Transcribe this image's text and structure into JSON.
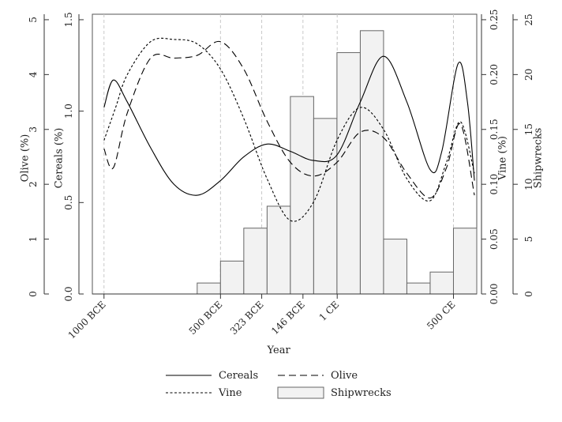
{
  "chart_data": {
    "type": "bar+line",
    "xlabel": "Year",
    "x_ticks": [
      {
        "label": "1000 BCE",
        "x": -1000
      },
      {
        "label": "500 BCE",
        "x": -500
      },
      {
        "label": "323 BCE",
        "x": -323
      },
      {
        "label": "146 BCE",
        "x": -146
      },
      {
        "label": "1 CE",
        "x": 1
      },
      {
        "label": "500 CE",
        "x": 500
      }
    ],
    "xlim": [
      -1050,
      600
    ],
    "axes": [
      {
        "label": "Olive (%)",
        "ticks": [
          "0",
          "1",
          "2",
          "3",
          "4",
          "5"
        ],
        "ylim": [
          0,
          5.1
        ]
      },
      {
        "label": "Cereals (%)",
        "ticks": [
          "0.0",
          "0.5",
          "1.0",
          "1.5"
        ],
        "ylim": [
          0,
          1.53
        ]
      },
      {
        "label": "Vine (%)",
        "ticks": [
          "0.00",
          "0.05",
          "0.10",
          "0.15",
          "0.20",
          "0.25"
        ],
        "ylim": [
          0,
          0.255
        ]
      },
      {
        "label": "Shipwrecks",
        "ticks": [
          "0",
          "5",
          "10",
          "15",
          "20",
          "25"
        ],
        "ylim": [
          0,
          25.5
        ]
      }
    ],
    "bars": {
      "name": "Shipwrecks",
      "width": 100,
      "centers": [
        -550,
        -450,
        -350,
        -250,
        -150,
        -50,
        50,
        150,
        250,
        350,
        450,
        550
      ],
      "values": [
        1,
        3,
        6,
        8,
        18,
        16,
        22,
        24,
        5,
        1,
        2,
        6
      ]
    },
    "series": [
      {
        "name": "Cereals",
        "axis": "Cereals (%)",
        "dash": "solid",
        "points": [
          [
            -1000,
            1.02
          ],
          [
            -960,
            1.17
          ],
          [
            -900,
            1.05
          ],
          [
            -800,
            0.8
          ],
          [
            -700,
            0.6
          ],
          [
            -600,
            0.54
          ],
          [
            -500,
            0.62
          ],
          [
            -400,
            0.75
          ],
          [
            -300,
            0.82
          ],
          [
            -200,
            0.78
          ],
          [
            -100,
            0.73
          ],
          [
            0,
            0.76
          ],
          [
            100,
            1.05
          ],
          [
            200,
            1.3
          ],
          [
            300,
            1.05
          ],
          [
            400,
            0.68
          ],
          [
            450,
            0.78
          ],
          [
            520,
            1.26
          ],
          [
            560,
            1.05
          ],
          [
            590,
            0.62
          ]
        ]
      },
      {
        "name": "Olive",
        "axis": "Olive (%)",
        "dash": "long",
        "points": [
          [
            -1000,
            2.65
          ],
          [
            -960,
            2.3
          ],
          [
            -900,
            3.3
          ],
          [
            -800,
            4.3
          ],
          [
            -700,
            4.3
          ],
          [
            -600,
            4.35
          ],
          [
            -500,
            4.6
          ],
          [
            -400,
            4.1
          ],
          [
            -300,
            3.15
          ],
          [
            -200,
            2.4
          ],
          [
            -100,
            2.15
          ],
          [
            0,
            2.4
          ],
          [
            100,
            2.95
          ],
          [
            200,
            2.85
          ],
          [
            300,
            2.2
          ],
          [
            400,
            1.75
          ],
          [
            470,
            2.3
          ],
          [
            530,
            3.1
          ],
          [
            590,
            1.8
          ]
        ]
      },
      {
        "name": "Vine",
        "axis": "Vine (%)",
        "dash": "short",
        "points": [
          [
            -1000,
            0.14
          ],
          [
            -950,
            0.17
          ],
          [
            -900,
            0.2
          ],
          [
            -800,
            0.23
          ],
          [
            -700,
            0.232
          ],
          [
            -600,
            0.228
          ],
          [
            -500,
            0.205
          ],
          [
            -400,
            0.16
          ],
          [
            -300,
            0.105
          ],
          [
            -200,
            0.067
          ],
          [
            -100,
            0.084
          ],
          [
            0,
            0.14
          ],
          [
            100,
            0.17
          ],
          [
            200,
            0.15
          ],
          [
            300,
            0.105
          ],
          [
            400,
            0.085
          ],
          [
            470,
            0.12
          ],
          [
            530,
            0.157
          ],
          [
            590,
            0.11
          ]
        ]
      }
    ],
    "legend": {
      "placement": "bottom",
      "entries": [
        {
          "name": "Cereals",
          "style": "solid"
        },
        {
          "name": "Olive",
          "style": "long-dash"
        },
        {
          "name": "Vine",
          "style": "short-dash"
        },
        {
          "name": "Shipwrecks",
          "style": "bar"
        }
      ]
    },
    "colors": {
      "lines": "#000000",
      "bar_fill": "#f2f2f2",
      "bar_stroke": "#666666",
      "grid": "#c8c8c8"
    }
  }
}
